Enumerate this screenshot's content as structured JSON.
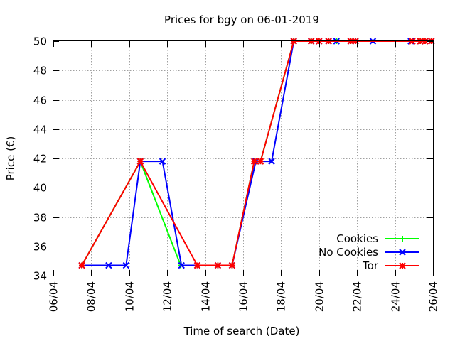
{
  "chart_data": {
    "type": "line",
    "title": "Prices for bgy on 06-01-2019",
    "xlabel": "Time of search (Date)",
    "ylabel": "Price (€)",
    "x_is_date": true,
    "xlim": [
      "2019-04-06",
      "2019-04-26"
    ],
    "ylim": [
      34,
      50
    ],
    "x_ticks": [
      {
        "date": "2019-04-06",
        "label": "06/04"
      },
      {
        "date": "2019-04-08",
        "label": "08/04"
      },
      {
        "date": "2019-04-10",
        "label": "10/04"
      },
      {
        "date": "2019-04-12",
        "label": "12/04"
      },
      {
        "date": "2019-04-14",
        "label": "14/04"
      },
      {
        "date": "2019-04-16",
        "label": "16/04"
      },
      {
        "date": "2019-04-18",
        "label": "18/04"
      },
      {
        "date": "2019-04-20",
        "label": "20/04"
      },
      {
        "date": "2019-04-22",
        "label": "22/04"
      },
      {
        "date": "2019-04-24",
        "label": "24/04"
      },
      {
        "date": "2019-04-26",
        "label": "26/04"
      }
    ],
    "y_ticks": [
      34,
      36,
      38,
      40,
      42,
      44,
      46,
      48,
      50
    ],
    "grid": true,
    "legend_position": "bottom-right",
    "series": [
      {
        "name": "Cookies",
        "color": "#00ff00",
        "marker": "plus",
        "points": [
          [
            "2019-04-07 12:00",
            34.7
          ],
          [
            "2019-04-10 14:00",
            41.8
          ],
          [
            "2019-04-12 17:00",
            34.7
          ],
          [
            "2019-04-13 14:00",
            34.7
          ],
          [
            "2019-04-14 16:00",
            34.7
          ],
          [
            "2019-04-15 10:00",
            34.7
          ],
          [
            "2019-04-16 14:00",
            41.8
          ],
          [
            "2019-04-16 22:00",
            41.8
          ],
          [
            "2019-04-18 16:00",
            50.0
          ],
          [
            "2019-04-19 14:00",
            50.0
          ],
          [
            "2019-04-20 00:00",
            50.0
          ],
          [
            "2019-04-20 12:00",
            50.0
          ],
          [
            "2019-04-20 22:00",
            50.0
          ],
          [
            "2019-04-21 16:00",
            50.0
          ],
          [
            "2019-04-21 22:00",
            50.0
          ],
          [
            "2019-04-24 22:00",
            50.0
          ],
          [
            "2019-04-25 08:00",
            50.0
          ],
          [
            "2019-04-25 14:00",
            50.0
          ],
          [
            "2019-04-25 22:00",
            50.0
          ]
        ]
      },
      {
        "name": "No Cookies",
        "color": "#0000ff",
        "marker": "cross",
        "points": [
          [
            "2019-04-07 12:00",
            34.7
          ],
          [
            "2019-04-08 22:00",
            34.7
          ],
          [
            "2019-04-09 20:00",
            34.7
          ],
          [
            "2019-04-10 14:00",
            41.8
          ],
          [
            "2019-04-11 18:00",
            41.8
          ],
          [
            "2019-04-12 18:00",
            34.7
          ],
          [
            "2019-04-13 14:00",
            34.7
          ],
          [
            "2019-04-14 16:00",
            34.7
          ],
          [
            "2019-04-15 10:00",
            34.7
          ],
          [
            "2019-04-16 16:00",
            41.8
          ],
          [
            "2019-04-17 12:00",
            41.8
          ],
          [
            "2019-04-18 16:00",
            50.0
          ],
          [
            "2019-04-19 14:00",
            50.0
          ],
          [
            "2019-04-20 00:00",
            50.0
          ],
          [
            "2019-04-20 12:00",
            50.0
          ],
          [
            "2019-04-20 22:00",
            50.0
          ],
          [
            "2019-04-21 16:00",
            50.0
          ],
          [
            "2019-04-21 22:00",
            50.0
          ],
          [
            "2019-04-22 20:00",
            50.0
          ],
          [
            "2019-04-24 20:00",
            50.0
          ],
          [
            "2019-04-25 08:00",
            50.0
          ],
          [
            "2019-04-25 14:00",
            50.0
          ],
          [
            "2019-04-25 22:00",
            50.0
          ]
        ]
      },
      {
        "name": "Tor",
        "color": "#ff0000",
        "marker": "star",
        "points": [
          [
            "2019-04-07 12:00",
            34.7
          ],
          [
            "2019-04-10 14:00",
            41.8
          ],
          [
            "2019-04-13 14:00",
            34.7
          ],
          [
            "2019-04-14 16:00",
            34.7
          ],
          [
            "2019-04-15 10:00",
            34.7
          ],
          [
            "2019-04-16 14:00",
            41.8
          ],
          [
            "2019-04-16 22:00",
            41.8
          ],
          [
            "2019-04-18 16:00",
            50.0
          ],
          [
            "2019-04-19 14:00",
            50.0
          ],
          [
            "2019-04-20 00:00",
            50.0
          ],
          [
            "2019-04-20 12:00",
            50.0
          ],
          [
            "2019-04-21 16:00",
            50.0
          ],
          [
            "2019-04-21 22:00",
            50.0
          ],
          [
            "2019-04-24 22:00",
            50.0
          ],
          [
            "2019-04-25 08:00",
            50.0
          ],
          [
            "2019-04-25 14:00",
            50.0
          ],
          [
            "2019-04-25 22:00",
            50.0
          ]
        ]
      }
    ]
  }
}
